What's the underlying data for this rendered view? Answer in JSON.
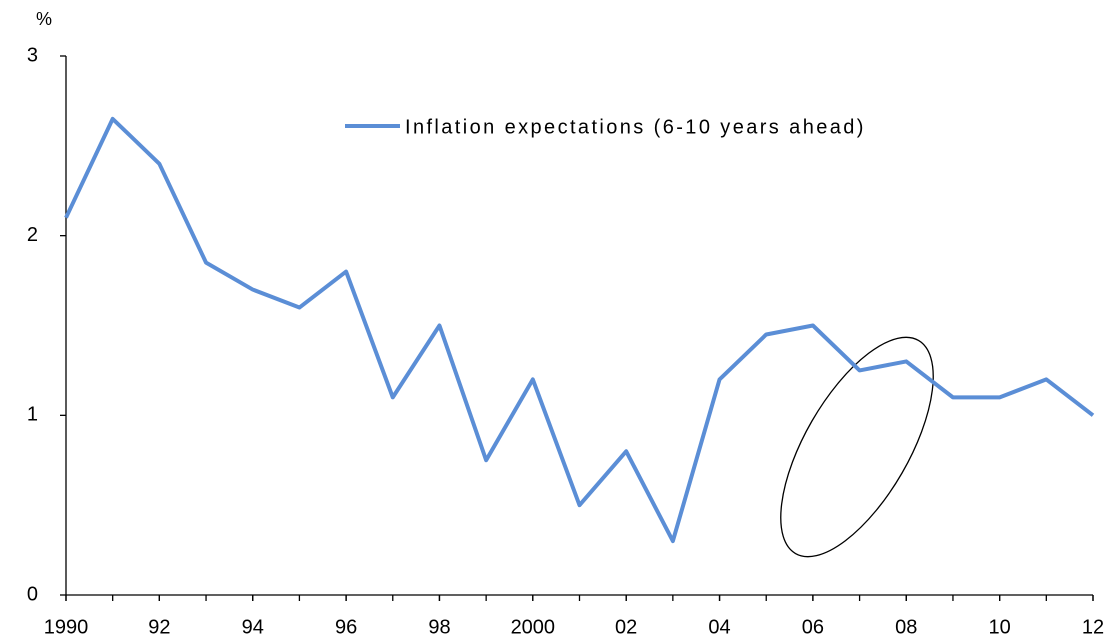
{
  "chart_data": {
    "type": "line",
    "y_label": "%",
    "x": [
      1990,
      1991,
      1992,
      1993,
      1994,
      1995,
      1996,
      1997,
      1998,
      1999,
      2000,
      2001,
      2002,
      2003,
      2004,
      2005,
      2006,
      2007,
      2008,
      2009,
      2010,
      2011,
      2012
    ],
    "series": [
      {
        "name": "Inflation expectations (6-10 years ahead)",
        "color": "#5b8ed6",
        "values": [
          2.1,
          2.65,
          2.4,
          1.85,
          1.7,
          1.6,
          1.8,
          1.1,
          1.5,
          0.75,
          1.2,
          0.5,
          0.8,
          0.3,
          1.2,
          1.45,
          1.5,
          1.25,
          1.3,
          1.1,
          1.1,
          1.2,
          1.0
        ]
      }
    ],
    "xlim": [
      1990,
      2012
    ],
    "xticks": [
      1990,
      {
        "value": 1992,
        "label": "92"
      },
      {
        "value": 1994,
        "label": "94"
      },
      {
        "value": 1996,
        "label": "96"
      },
      {
        "value": 1998,
        "label": "98"
      },
      2000,
      {
        "value": 2002,
        "label": "02"
      },
      {
        "value": 2004,
        "label": "04"
      },
      {
        "value": 2006,
        "label": "06"
      },
      {
        "value": 2008,
        "label": "08"
      },
      {
        "value": 2010,
        "label": "10"
      },
      {
        "value": 2012,
        "label": "12"
      }
    ],
    "ylim": [
      0,
      3
    ],
    "yticks": [
      0,
      1,
      2,
      3
    ]
  }
}
